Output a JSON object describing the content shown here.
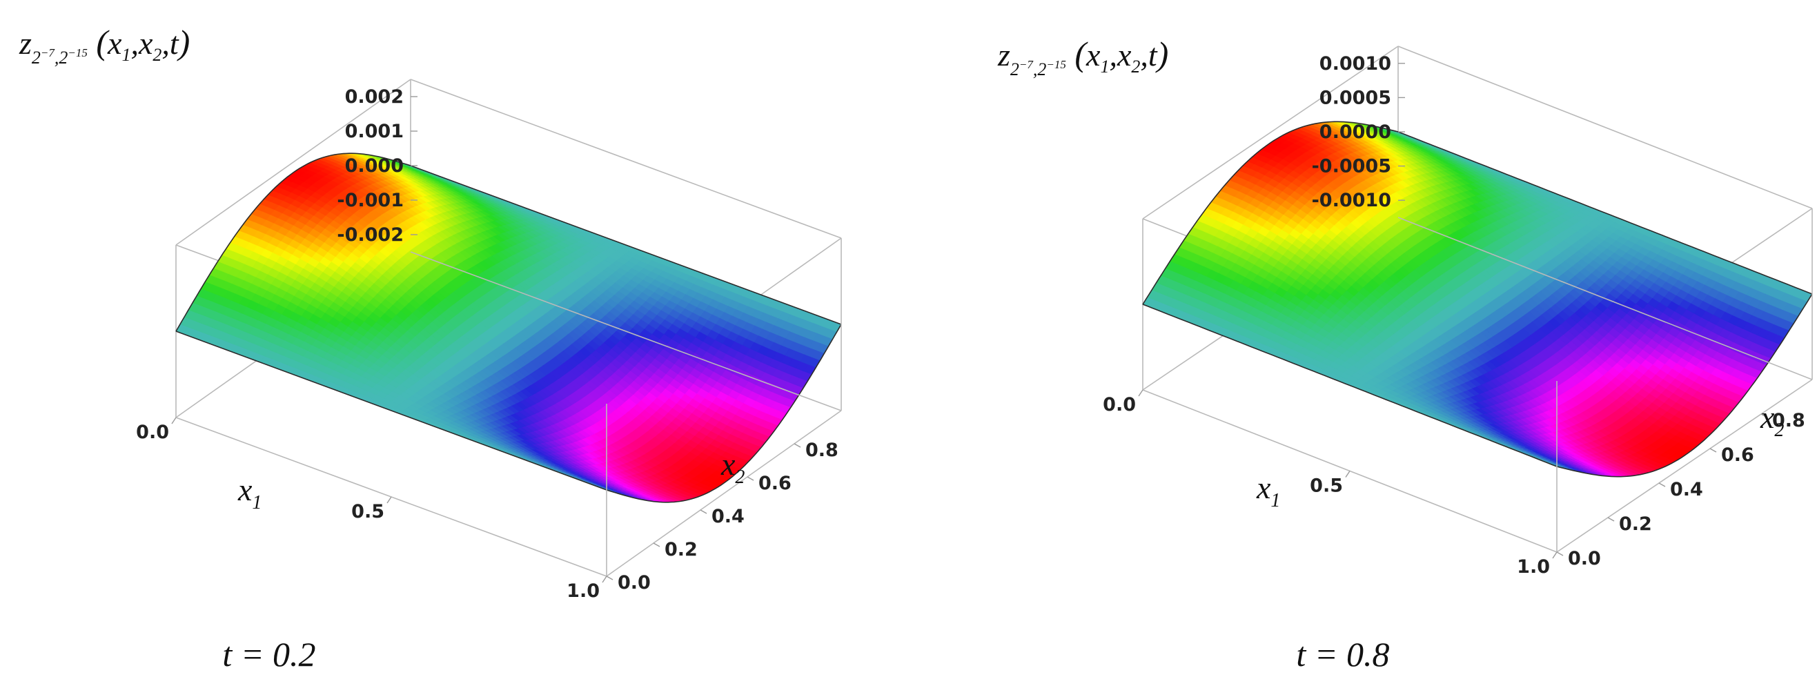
{
  "chart_data": [
    {
      "type": "surface3d",
      "z_label": {
        "base": "z",
        "sub_a_base": "2",
        "sub_a_exp": "−7",
        "sub_sep": ",",
        "sub_b_base": "2",
        "sub_b_exp": "−15",
        "open": "(",
        "arg1": "x",
        "arg1_sub": "1",
        "comma1": ",",
        "arg2": "x",
        "arg2_sub": "2",
        "comma2": ",",
        "arg3": "t",
        "close": ")"
      },
      "x1_label": {
        "base": "x",
        "sub": "1"
      },
      "x2_label": {
        "base": "x",
        "sub": "2"
      },
      "caption": "t = 0.2",
      "x1_ticks": [
        "0.0",
        "0.5",
        "1.0"
      ],
      "x2_ticks": [
        "0.0",
        "0.2",
        "0.4",
        "0.6",
        "0.8"
      ],
      "z_ticks": [
        "0.002",
        "0.001",
        "0.000",
        "-0.001",
        "-0.002"
      ],
      "x1_range": [
        0,
        1
      ],
      "x2_range": [
        0,
        1
      ],
      "z_range": [
        -0.0025,
        0.0025
      ],
      "peak_amplitude": 0.0022,
      "colormap": "hue"
    },
    {
      "type": "surface3d",
      "z_label": {
        "base": "z",
        "sub_a_base": "2",
        "sub_a_exp": "−7",
        "sub_sep": ",",
        "sub_b_base": "2",
        "sub_b_exp": "−15",
        "open": "(",
        "arg1": "x",
        "arg1_sub": "1",
        "comma1": ",",
        "arg2": "x",
        "arg2_sub": "2",
        "comma2": ",",
        "arg3": "t",
        "close": ")"
      },
      "x1_label": {
        "base": "x",
        "sub": "1"
      },
      "x2_label": {
        "base": "x",
        "sub": "2"
      },
      "caption": "t = 0.8",
      "x1_ticks": [
        "0.0",
        "0.5",
        "1.0"
      ],
      "x2_ticks": [
        "0.0",
        "0.2",
        "0.4",
        "0.6",
        "0.8"
      ],
      "z_ticks": [
        "0.0010",
        "0.0005",
        "0.0000",
        "-0.0005",
        "-0.0010"
      ],
      "x1_range": [
        0,
        1
      ],
      "x2_range": [
        0,
        1
      ],
      "z_range": [
        -0.00125,
        0.00125
      ],
      "peak_amplitude": 0.0011,
      "colormap": "hue"
    }
  ]
}
